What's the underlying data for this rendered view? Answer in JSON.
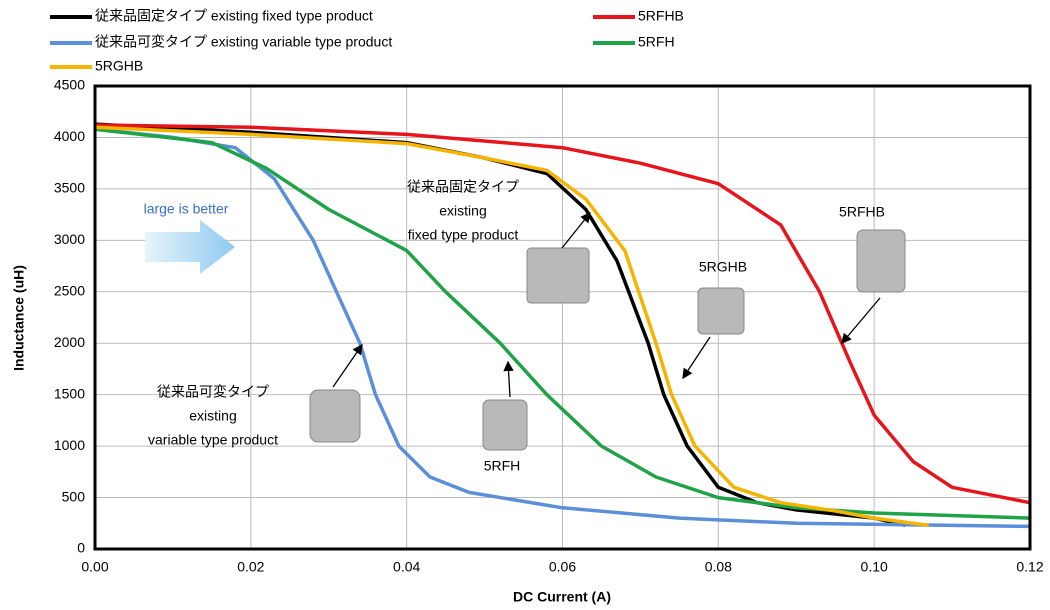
{
  "chart_data": {
    "type": "line",
    "xlabel": "DC Current (A)",
    "ylabel": "Inductance  (uH)",
    "xlim": [
      0,
      0.12
    ],
    "xticks": [
      {
        "value": 0,
        "label": "0.00"
      },
      0.02,
      0.04,
      0.06,
      0.08,
      {
        "value": 0.1,
        "label": "0.10"
      },
      0.12
    ],
    "ylim": [
      0,
      4500
    ],
    "yticks": [
      0,
      500,
      1000,
      1500,
      2000,
      2500,
      3000,
      3500,
      4000,
      4500
    ],
    "grid": true,
    "legend": "top",
    "series": [
      {
        "name": "従来品固定タイプ  existing fixed type product",
        "color": "#000000",
        "x": [
          0,
          0.02,
          0.04,
          0.05,
          0.058,
          0.063,
          0.067,
          0.071,
          0.073,
          0.076,
          0.08,
          0.085,
          0.09,
          0.1,
          0.104
        ],
        "values": [
          4130,
          4050,
          3950,
          3800,
          3650,
          3300,
          2800,
          2000,
          1500,
          1000,
          600,
          450,
          380,
          300,
          230
        ]
      },
      {
        "name": "5RFHB",
        "color": "#e8141b",
        "x": [
          0,
          0.02,
          0.04,
          0.06,
          0.07,
          0.08,
          0.088,
          0.093,
          0.097,
          0.1,
          0.105,
          0.11,
          0.12
        ],
        "values": [
          4120,
          4100,
          4030,
          3900,
          3750,
          3550,
          3150,
          2500,
          1800,
          1300,
          850,
          600,
          450
        ]
      },
      {
        "name": "従来品可変タイプ  existing variable type product",
        "color": "#5b8fd8",
        "x": [
          0,
          0.01,
          0.018,
          0.023,
          0.028,
          0.031,
          0.034,
          0.036,
          0.039,
          0.043,
          0.048,
          0.06,
          0.075,
          0.09,
          0.12
        ],
        "values": [
          4080,
          4000,
          3900,
          3600,
          3000,
          2500,
          2000,
          1500,
          1000,
          700,
          550,
          400,
          300,
          250,
          220
        ]
      },
      {
        "name": "5RFH",
        "color": "#1fa347",
        "x": [
          0,
          0.015,
          0.022,
          0.03,
          0.04,
          0.045,
          0.052,
          0.058,
          0.065,
          0.072,
          0.08,
          0.09,
          0.1,
          0.12
        ],
        "values": [
          4080,
          3950,
          3700,
          3300,
          2900,
          2500,
          2000,
          1500,
          1000,
          700,
          500,
          400,
          350,
          300
        ]
      },
      {
        "name": "5RGHB",
        "color": "#f5b400",
        "x": [
          0,
          0.02,
          0.04,
          0.05,
          0.058,
          0.063,
          0.068,
          0.072,
          0.074,
          0.077,
          0.082,
          0.088,
          0.095,
          0.1,
          0.107
        ],
        "values": [
          4100,
          4030,
          3940,
          3800,
          3680,
          3400,
          2900,
          2000,
          1500,
          1000,
          600,
          450,
          370,
          300,
          230
        ]
      }
    ],
    "annotations": [
      [
        "large is better"
      ],
      [
        "従来品固定タイプ",
        "existing",
        "fixed type product"
      ],
      [
        "5RGHB"
      ],
      [
        "5RFHB"
      ],
      [
        "従来品可変タイプ",
        "existing",
        "variable type product"
      ],
      [
        "5RFH"
      ]
    ]
  }
}
